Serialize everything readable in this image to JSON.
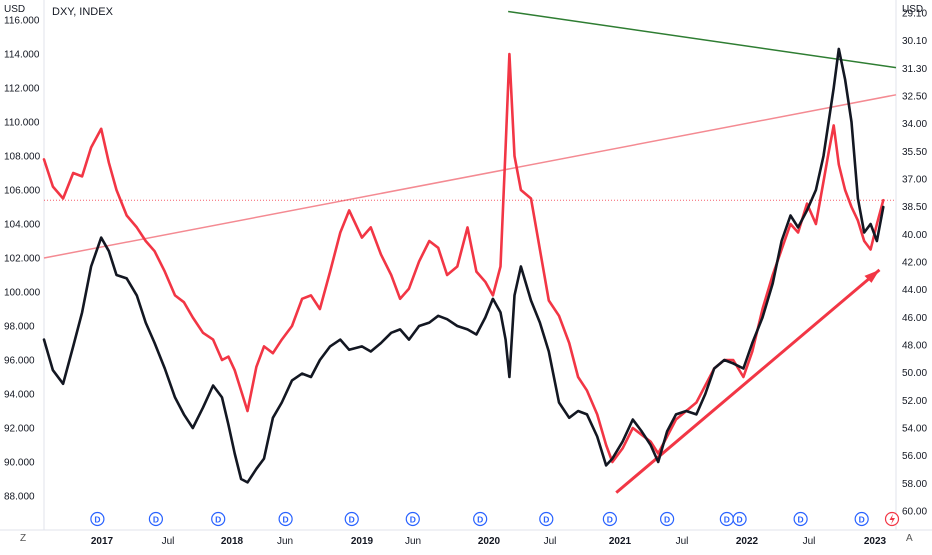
{
  "chart_data": {
    "type": "line",
    "title": "DXY, INDEX",
    "left_axis": {
      "unit": "USD",
      "ticks": [
        "116.000",
        "114.000",
        "112.000",
        "110.000",
        "108.000",
        "106.000",
        "104.000",
        "102.000",
        "100.000",
        "98.000",
        "96.000",
        "94.000",
        "92.000",
        "90.000",
        "88.000"
      ],
      "range": [
        87,
        116
      ]
    },
    "right_axis": {
      "unit": "USD",
      "ticks": [
        "29.10",
        "30.10",
        "31.30",
        "32.50",
        "34.00",
        "35.50",
        "37.00",
        "38.50",
        "40.00",
        "42.00",
        "44.00",
        "46.00",
        "48.00",
        "50.00",
        "52.00",
        "54.00",
        "56.00",
        "58.00",
        "60.00"
      ]
    },
    "x_axis": {
      "labels": [
        "2017",
        "Jul",
        "2018",
        "Jun",
        "2019",
        "Jun",
        "2020",
        "Jul",
        "2021",
        "Jul",
        "2022",
        "Jul",
        "2023"
      ],
      "range": [
        2016.55,
        2023.25
      ]
    },
    "series": [
      {
        "color": "#131722",
        "x": [
          2016.55,
          2016.62,
          2016.7,
          2016.78,
          2016.85,
          2016.92,
          2017.0,
          2017.06,
          2017.12,
          2017.2,
          2017.28,
          2017.35,
          2017.42,
          2017.5,
          2017.58,
          2017.65,
          2017.72,
          2017.8,
          2017.88,
          2017.95,
          2018.0,
          2018.05,
          2018.1,
          2018.15,
          2018.22,
          2018.28,
          2018.35,
          2018.42,
          2018.5,
          2018.58,
          2018.65,
          2018.72,
          2018.8,
          2018.88,
          2018.95,
          2019.05,
          2019.12,
          2019.2,
          2019.28,
          2019.35,
          2019.42,
          2019.5,
          2019.58,
          2019.65,
          2019.72,
          2019.8,
          2019.88,
          2019.95,
          2020.02,
          2020.08,
          2020.14,
          2020.18,
          2020.21,
          2020.25,
          2020.3,
          2020.38,
          2020.45,
          2020.52,
          2020.6,
          2020.68,
          2020.75,
          2020.82,
          2020.9,
          2020.97,
          2021.02,
          2021.1,
          2021.18,
          2021.25,
          2021.32,
          2021.38,
          2021.45,
          2021.52,
          2021.6,
          2021.68,
          2021.75,
          2021.82,
          2021.9,
          2021.97,
          2022.05,
          2022.12,
          2022.2,
          2022.28,
          2022.35,
          2022.42,
          2022.48,
          2022.55,
          2022.62,
          2022.68,
          2022.72,
          2022.76,
          2022.8,
          2022.85,
          2022.9,
          2022.95,
          2023.0,
          2023.05,
          2023.1,
          2023.15
        ],
        "y": [
          97.2,
          95.4,
          94.6,
          96.8,
          98.8,
          101.5,
          103.2,
          102.4,
          101.0,
          100.8,
          99.8,
          98.2,
          97.0,
          95.5,
          93.8,
          92.8,
          92.0,
          93.2,
          94.5,
          93.8,
          92.2,
          90.5,
          89.0,
          88.8,
          89.6,
          90.2,
          92.6,
          93.5,
          94.8,
          95.2,
          95.0,
          96.0,
          96.8,
          97.2,
          96.6,
          96.8,
          96.5,
          97.0,
          97.6,
          97.8,
          97.2,
          98.0,
          98.2,
          98.6,
          98.4,
          98.0,
          97.8,
          97.5,
          98.5,
          99.6,
          98.8,
          97.2,
          95.0,
          99.8,
          101.5,
          99.5,
          98.2,
          96.5,
          93.5,
          92.6,
          93.0,
          92.8,
          91.5,
          89.8,
          90.2,
          91.2,
          92.5,
          91.8,
          91.0,
          90.0,
          91.8,
          92.8,
          93.0,
          92.8,
          94.0,
          95.5,
          96.0,
          95.8,
          95.5,
          97.0,
          98.5,
          100.5,
          103.0,
          104.5,
          103.8,
          104.8,
          106.0,
          108.0,
          110.0,
          112.0,
          114.3,
          112.5,
          110.0,
          105.5,
          103.5,
          104.0,
          103.0,
          105.0
        ]
      },
      {
        "color": "#f23645",
        "x": [
          2016.55,
          2016.62,
          2016.7,
          2016.78,
          2016.85,
          2016.92,
          2017.0,
          2017.06,
          2017.12,
          2017.2,
          2017.28,
          2017.35,
          2017.42,
          2017.5,
          2017.58,
          2017.65,
          2017.72,
          2017.8,
          2017.88,
          2017.95,
          2018.0,
          2018.05,
          2018.1,
          2018.15,
          2018.22,
          2018.28,
          2018.35,
          2018.42,
          2018.5,
          2018.58,
          2018.65,
          2018.72,
          2018.8,
          2018.88,
          2018.95,
          2019.05,
          2019.12,
          2019.2,
          2019.28,
          2019.35,
          2019.42,
          2019.5,
          2019.58,
          2019.65,
          2019.72,
          2019.8,
          2019.88,
          2019.95,
          2020.02,
          2020.08,
          2020.14,
          2020.18,
          2020.21,
          2020.25,
          2020.3,
          2020.38,
          2020.45,
          2020.52,
          2020.6,
          2020.68,
          2020.75,
          2020.82,
          2020.9,
          2020.97,
          2021.02,
          2021.1,
          2021.18,
          2021.25,
          2021.32,
          2021.38,
          2021.45,
          2021.52,
          2021.6,
          2021.68,
          2021.75,
          2021.82,
          2021.9,
          2021.97,
          2022.05,
          2022.12,
          2022.2,
          2022.28,
          2022.35,
          2022.42,
          2022.48,
          2022.55,
          2022.62,
          2022.68,
          2022.72,
          2022.76,
          2022.8,
          2022.85,
          2022.9,
          2022.95,
          2023.0,
          2023.05,
          2023.1,
          2023.15
        ],
        "y": [
          107.8,
          106.2,
          105.5,
          107.0,
          106.8,
          108.5,
          109.6,
          107.6,
          106.0,
          104.5,
          103.8,
          103.0,
          102.4,
          101.2,
          99.8,
          99.4,
          98.5,
          97.6,
          97.2,
          96.0,
          96.2,
          95.4,
          94.2,
          93.0,
          95.6,
          96.8,
          96.4,
          97.2,
          98.0,
          99.6,
          99.8,
          99.0,
          101.2,
          103.5,
          104.8,
          103.2,
          103.8,
          102.2,
          101.0,
          99.6,
          100.2,
          101.8,
          103.0,
          102.6,
          101.0,
          101.5,
          103.8,
          101.2,
          100.6,
          99.8,
          101.5,
          108.5,
          114.0,
          108.0,
          106.0,
          105.5,
          102.5,
          99.5,
          98.6,
          97.0,
          95.0,
          94.2,
          92.8,
          91.0,
          90.0,
          90.8,
          92.0,
          91.6,
          91.2,
          90.5,
          91.5,
          92.5,
          93.0,
          93.5,
          94.5,
          95.5,
          96.0,
          96.0,
          95.0,
          96.5,
          99.0,
          101.0,
          102.5,
          104.0,
          103.5,
          105.2,
          104.0,
          106.5,
          108.2,
          109.8,
          107.5,
          106.0,
          105.0,
          104.2,
          103.0,
          102.5,
          104.0,
          105.4
        ]
      }
    ],
    "trendlines": [
      {
        "color": "#2e7d32",
        "from": [
          2020.2,
          116.5
        ],
        "to": [
          2023.25,
          113.2
        ]
      },
      {
        "color": "#f48a92",
        "from": [
          2016.55,
          102.0
        ],
        "to": [
          2023.25,
          111.6
        ]
      },
      {
        "color": "#f23645",
        "from": [
          2021.05,
          88.2
        ],
        "to": [
          2023.12,
          101.3
        ]
      }
    ],
    "reference_line": {
      "color": "#f23645",
      "y": 105.4
    },
    "event_markers": {
      "label": "D",
      "x": [
        2016.97,
        2017.43,
        2017.92,
        2018.45,
        2018.97,
        2019.45,
        2019.98,
        2020.5,
        2021.0,
        2021.45,
        2021.92,
        2022.02,
        2022.5,
        2022.98
      ]
    }
  },
  "ui": {
    "corner_left": "Z",
    "corner_right": "A",
    "right_top_tick": "29.10"
  }
}
